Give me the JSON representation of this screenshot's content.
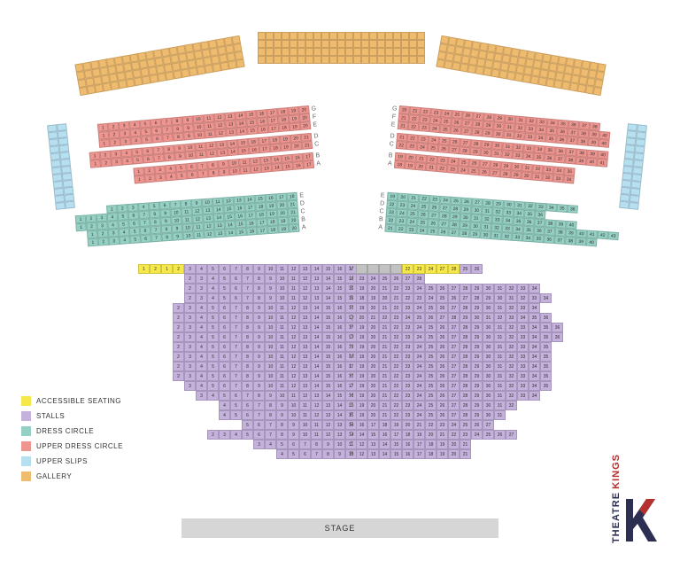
{
  "colors": {
    "accessible": "#f7e84a",
    "stalls": "#c4b1dc",
    "dress_circle": "#94d0c3",
    "upper_dress_circle": "#ee9590",
    "upper_slips": "#b6dff0",
    "gallery": "#efbb6e",
    "stage": "#d6d6d6",
    "gray": "#c2c2c2",
    "logo_red": "#b5302e",
    "logo_navy": "#2d2f52"
  },
  "legend": [
    {
      "key": "accessible",
      "label": "ACCESSIBLE SEATING"
    },
    {
      "key": "stalls",
      "label": "STALLS"
    },
    {
      "key": "dress_circle",
      "label": "DRESS CIRCLE"
    },
    {
      "key": "upper_dress_circle",
      "label": "UPPER DRESS CIRCLE"
    },
    {
      "key": "upper_slips",
      "label": "UPPER SLIPS"
    },
    {
      "key": "gallery",
      "label": "GALLERY"
    }
  ],
  "stage_label": "STAGE",
  "logo": {
    "kings": "KINGS",
    "theatre": "THEATRE"
  },
  "gallery": {
    "rows": 4,
    "cols_per_section": 21,
    "sections": 3,
    "seat_w": 9,
    "seat_h": 9
  },
  "upper_slips": {
    "rows": 12,
    "cols": 2,
    "seat_w": 11,
    "seat_h": 8
  },
  "upper_dress_circle": {
    "row_labels_left": [
      "G",
      "F",
      "E",
      "D",
      "C",
      "B",
      "A"
    ],
    "row_labels_right": [
      "G",
      "F",
      "E",
      "D",
      "C",
      "B",
      "A"
    ],
    "left_rows": [
      {
        "label": "G",
        "start": 1,
        "end": 20
      },
      {
        "label": "F",
        "start": 1,
        "end": 20
      },
      {
        "label": "E",
        "start": 1,
        "end": 20
      },
      {
        "label": "gap"
      },
      {
        "label": "D",
        "start": 1,
        "end": 21
      },
      {
        "label": "C",
        "start": 1,
        "end": 21
      },
      {
        "label": "gap"
      },
      {
        "label": "B",
        "start": 1,
        "end": 17
      },
      {
        "label": "A",
        "start": 1,
        "end": 17
      }
    ],
    "right_rows": [
      {
        "label": "G",
        "start": 20,
        "end": 38
      },
      {
        "label": "F",
        "start": 21,
        "end": 40
      },
      {
        "label": "E",
        "start": 21,
        "end": 40
      },
      {
        "label": "gap"
      },
      {
        "label": "D",
        "start": 21,
        "end": 40
      },
      {
        "label": "C",
        "start": 22,
        "end": 41
      },
      {
        "label": "gap"
      },
      {
        "label": "B",
        "start": 19,
        "end": 35
      },
      {
        "label": "A",
        "start": 18,
        "end": 34
      }
    ],
    "seat_w": 12,
    "seat_h": 9
  },
  "dress_circle": {
    "left_rows": [
      {
        "label": "E",
        "start": 1,
        "end": 18
      },
      {
        "label": "D",
        "start": 1,
        "end": 21
      },
      {
        "label": "C",
        "start": 1,
        "end": 21
      },
      {
        "label": "B",
        "start": 1,
        "end": 20
      },
      {
        "label": "A",
        "start": 1,
        "end": 20
      }
    ],
    "right_rows": [
      {
        "label": "E",
        "start": 19,
        "end": 36
      },
      {
        "label": "D",
        "start": 22,
        "end": 36
      },
      {
        "label": "C",
        "start": 23,
        "end": 40
      },
      {
        "label": "B",
        "start": 22,
        "end": 43
      },
      {
        "label": "A",
        "start": 21,
        "end": 40
      }
    ],
    "seat_w": 12,
    "seat_h": 9
  },
  "stalls": {
    "left": {
      "rows": [
        {
          "label": "V",
          "start": 1,
          "end": 17,
          "accessible": [
            1,
            2
          ]
        },
        {
          "label": "U",
          "start": 2,
          "end": 16
        },
        {
          "label": "T",
          "start": 2,
          "end": 16
        },
        {
          "label": "S",
          "start": 2,
          "end": 16
        },
        {
          "label": "R",
          "start": 2,
          "end": 17
        },
        {
          "label": "Q",
          "start": 2,
          "end": 17
        },
        {
          "label": "P",
          "start": 2,
          "end": 17
        },
        {
          "label": "O",
          "start": 2,
          "end": 17
        },
        {
          "label": "N",
          "start": 2,
          "end": 17
        },
        {
          "label": "M",
          "start": 2,
          "end": 17
        },
        {
          "label": "L",
          "start": 2,
          "end": 17
        },
        {
          "label": "K",
          "start": 2,
          "end": 17
        },
        {
          "label": "J",
          "start": 3,
          "end": 17
        },
        {
          "label": "H",
          "start": 3,
          "end": 16
        },
        {
          "label": "G",
          "start": 4,
          "end": 15
        },
        {
          "label": "F",
          "start": 4,
          "end": 15
        },
        {
          "label": "E",
          "start": 5,
          "end": 14
        },
        {
          "label": "D",
          "start": 2,
          "end": 14
        },
        {
          "label": "C",
          "start": 3,
          "end": 11
        },
        {
          "label": "B",
          "start": 4,
          "end": 10
        }
      ]
    },
    "right": {
      "rows": [
        {
          "label": "V",
          "gray_start": 18,
          "gray_end": 21,
          "accessible": [
            22,
            23,
            24,
            27,
            28
          ],
          "normal_after": [
            25,
            26
          ]
        },
        {
          "label": "U",
          "start": 23,
          "end": 28
        },
        {
          "label": "T",
          "start": 19,
          "end": 34
        },
        {
          "label": "S",
          "start": 18,
          "end": 34
        },
        {
          "label": "R",
          "start": 19,
          "end": 34
        },
        {
          "label": "Q",
          "start": 20,
          "end": 36
        },
        {
          "label": "P",
          "start": 19,
          "end": 36
        },
        {
          "label": "O",
          "start": 19,
          "end": 36
        },
        {
          "label": "N",
          "start": 19,
          "end": 35
        },
        {
          "label": "M",
          "start": 19,
          "end": 35
        },
        {
          "label": "L",
          "start": 19,
          "end": 35
        },
        {
          "label": "K",
          "start": 19,
          "end": 35
        },
        {
          "label": "J",
          "start": 19,
          "end": 35
        },
        {
          "label": "H",
          "start": 19,
          "end": 34
        },
        {
          "label": "G",
          "start": 19,
          "end": 32
        },
        {
          "label": "F",
          "start": 19,
          "end": 31
        },
        {
          "label": "E",
          "start": 16,
          "end": 27
        },
        {
          "label": "D",
          "start": 14,
          "end": 27
        },
        {
          "label": "C",
          "start": 12,
          "end": 21
        },
        {
          "label": "B",
          "start": 12,
          "end": 21
        }
      ]
    },
    "seat_w": 13,
    "seat_h": 11
  }
}
